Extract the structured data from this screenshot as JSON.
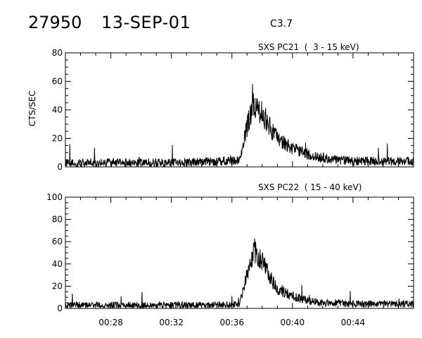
{
  "header": {
    "event_id": "27950",
    "date": "13-SEP-01",
    "flare_class": "C3.7"
  },
  "chart_data": [
    {
      "type": "line",
      "title": "SXS PC21  (  3 - 15 keV)",
      "ylabel": "CTS/SEC",
      "xlabel": "",
      "ylim": [
        0,
        80
      ],
      "yticks": [
        0,
        20,
        40,
        60,
        80
      ],
      "xlim": [
        "00:25",
        "00:48"
      ],
      "xticks": [
        "00:28",
        "00:32",
        "00:36",
        "00:40",
        "00:44"
      ],
      "show_xtick_labels": false,
      "grid": false,
      "series": [
        {
          "x": [
            "00:25",
            "00:27",
            "00:29",
            "00:31",
            "00:33",
            "00:35",
            "00:36:30",
            "00:37",
            "00:37:30",
            "00:38",
            "00:38:30",
            "00:39",
            "00:40",
            "00:41",
            "00:42",
            "00:43",
            "00:44",
            "00:46",
            "00:48"
          ],
          "values": [
            3,
            3,
            3,
            3,
            3,
            4,
            5,
            28,
            45,
            38,
            28,
            20,
            13,
            9,
            6,
            5,
            4,
            4,
            4
          ]
        }
      ]
    },
    {
      "type": "line",
      "title": "SXS PC22  ( 15 - 40 keV)",
      "ylabel": "",
      "xlabel": "",
      "ylim": [
        0,
        100
      ],
      "yticks": [
        0,
        20,
        40,
        60,
        80,
        100
      ],
      "xlim": [
        "00:25",
        "00:48"
      ],
      "xticks": [
        "00:28",
        "00:32",
        "00:36",
        "00:40",
        "00:44"
      ],
      "show_xtick_labels": true,
      "grid": false,
      "series": [
        {
          "x": [
            "00:25",
            "00:27",
            "00:29",
            "00:31",
            "00:33",
            "00:35",
            "00:36:30",
            "00:37",
            "00:37:30",
            "00:38",
            "00:38:30",
            "00:39",
            "00:40",
            "00:41",
            "00:42",
            "00:43",
            "00:44",
            "00:46",
            "00:48"
          ],
          "values": [
            3,
            3,
            3,
            3,
            3,
            3,
            4,
            30,
            52,
            42,
            28,
            18,
            11,
            7,
            5,
            5,
            4,
            4,
            4
          ]
        }
      ]
    }
  ]
}
